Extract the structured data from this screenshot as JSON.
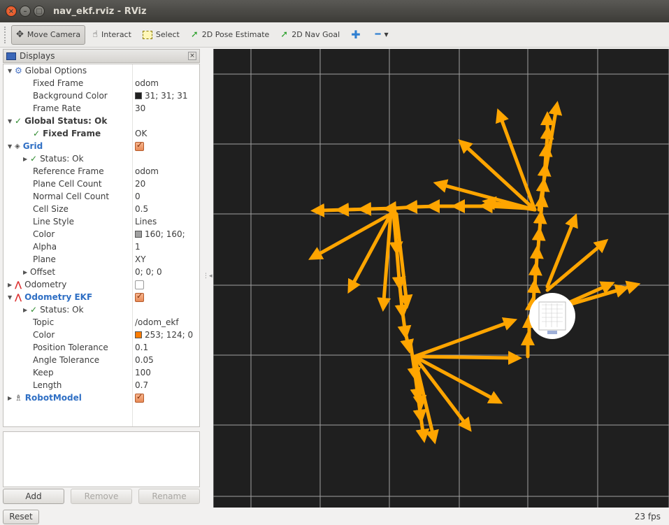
{
  "window": {
    "title": "nav_ekf.rviz - RViz"
  },
  "toolbar": {
    "tools": [
      {
        "label": "Move Camera",
        "icon": "move-camera-icon",
        "active": true
      },
      {
        "label": "Interact",
        "icon": "hand-icon"
      },
      {
        "label": "Select",
        "icon": "select-icon"
      },
      {
        "label": "2D Pose Estimate",
        "icon": "green-arrow-icon"
      },
      {
        "label": "2D Nav Goal",
        "icon": "green-arrow-icon"
      }
    ]
  },
  "displays": {
    "title": "Displays",
    "global_options": {
      "label": "Global Options",
      "fixed_frame_label": "Fixed Frame",
      "fixed_frame": "odom",
      "bg_label": "Background Color",
      "bg_value": "31; 31; 31",
      "bg_color": "#1f1f1f",
      "frame_rate_label": "Frame Rate",
      "frame_rate": "30"
    },
    "global_status": {
      "label": "Global Status: Ok",
      "fixed_frame_label": "Fixed Frame",
      "fixed_frame_value": "OK"
    },
    "grid": {
      "label": "Grid",
      "status": "Status: Ok",
      "ref_frame_label": "Reference Frame",
      "ref_frame": "odom",
      "plane_cells_label": "Plane Cell Count",
      "plane_cells": "20",
      "normal_cells_label": "Normal Cell Count",
      "normal_cells": "0",
      "cell_size_label": "Cell Size",
      "cell_size": "0.5",
      "line_style_label": "Line Style",
      "line_style": "Lines",
      "color_label": "Color",
      "color_value": "160; 160;",
      "color": "#a0a0a0",
      "alpha_label": "Alpha",
      "alpha": "1",
      "plane_label": "Plane",
      "plane": "XY",
      "offset_label": "Offset",
      "offset": "0; 0; 0"
    },
    "odometry": {
      "label": "Odometry"
    },
    "odometry_ekf": {
      "label": "Odometry EKF",
      "status": "Status: Ok",
      "topic_label": "Topic",
      "topic": "/odom_ekf",
      "color_label": "Color",
      "color_value": "253; 124; 0",
      "color": "#fd7c00",
      "pos_tol_label": "Position Tolerance",
      "pos_tol": "0.1",
      "ang_tol_label": "Angle Tolerance",
      "ang_tol": "0.05",
      "keep_label": "Keep",
      "keep": "100",
      "length_label": "Length",
      "length": "0.7"
    },
    "robot_model": {
      "label": "RobotModel"
    }
  },
  "buttons": {
    "add": "Add",
    "remove": "Remove",
    "rename": "Rename"
  },
  "status": {
    "reset": "Reset",
    "fps": "23 fps"
  },
  "colors": {
    "arrow": "#ffa500",
    "grid": "#a0a0a0",
    "background": "#1f1f1f"
  }
}
